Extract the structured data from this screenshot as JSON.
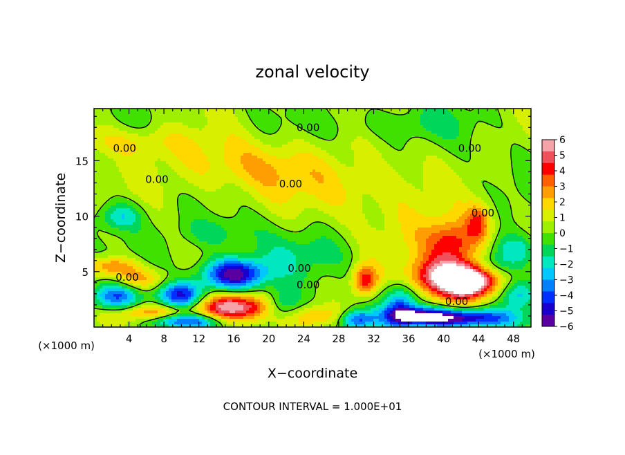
{
  "chart_data": {
    "type": "heatmap",
    "title": "zonal velocity",
    "xlabel": "X−coordinate",
    "ylabel": "Z−coordinate",
    "x_unit_label": "(×1000 m)",
    "y_unit_label": "(×1000 m)",
    "xlim": [
      0,
      50
    ],
    "ylim": [
      0,
      19.7
    ],
    "x_ticks": [
      4,
      8,
      12,
      16,
      20,
      24,
      28,
      32,
      36,
      40,
      44,
      48
    ],
    "y_ticks": [
      5,
      10,
      15
    ],
    "footer": "CONTOUR INTERVAL = 1.000E+01",
    "contour_label": "0.00",
    "colorbar": {
      "ticks": [
        6,
        5,
        4,
        3,
        2,
        1,
        0,
        -1,
        -2,
        -3,
        -4,
        -5,
        -6
      ],
      "colors": [
        "#f4a3a8",
        "#f0505a",
        "#ff0000",
        "#ff6000",
        "#ff9e00",
        "#ffd800",
        "#d8f000",
        "#9ef000",
        "#40e000",
        "#00d65a",
        "#00e8c0",
        "#00c8ff",
        "#0080ff",
        "#0030ff",
        "#1a00cc",
        "#5a00a0"
      ]
    },
    "field": {
      "background_value": 0.2,
      "features": [
        {
          "x": 16,
          "z": 1.8,
          "sx": 3.2,
          "sz": 0.9,
          "v": 6
        },
        {
          "x": 7,
          "z": 1.2,
          "sx": 3.5,
          "sz": 0.6,
          "v": 3
        },
        {
          "x": 16,
          "z": 4.8,
          "sx": 2.6,
          "sz": 1.0,
          "v": -6
        },
        {
          "x": 10,
          "z": 2.8,
          "sx": 2.0,
          "sz": 0.9,
          "v": -5
        },
        {
          "x": 2.5,
          "z": 2.8,
          "sx": 2.0,
          "sz": 0.9,
          "v": -4
        },
        {
          "x": 5,
          "z": 4.3,
          "sx": 2.4,
          "sz": 0.7,
          "v": 2.5
        },
        {
          "x": 2,
          "z": 5.5,
          "sx": 2.0,
          "sz": 0.6,
          "v": 3
        },
        {
          "x": 10,
          "z": 0.6,
          "sx": 3.0,
          "sz": 0.5,
          "v": -5
        },
        {
          "x": 21.5,
          "z": 2.0,
          "sx": 1.6,
          "sz": 1.0,
          "v": -3
        },
        {
          "x": 26,
          "z": 1.0,
          "sx": 2.5,
          "sz": 0.7,
          "v": 2
        },
        {
          "x": 31,
          "z": 4.2,
          "sx": 1.0,
          "sz": 1.0,
          "v": 4
        },
        {
          "x": 30,
          "z": 0.7,
          "sx": 1.4,
          "sz": 0.6,
          "v": -4
        },
        {
          "x": 35,
          "z": 2.0,
          "sx": 1.4,
          "sz": 1.4,
          "v": -4
        },
        {
          "x": 40.5,
          "z": 4.5,
          "sx": 3.2,
          "sz": 1.2,
          "v": 6
        },
        {
          "x": 43,
          "z": 4.0,
          "sx": 2.0,
          "sz": 1.0,
          "v": 5.5
        },
        {
          "x": 41,
          "z": 7.5,
          "sx": 2.0,
          "sz": 1.4,
          "v": 3.5
        },
        {
          "x": 44,
          "z": 9.5,
          "sx": 1.0,
          "sz": 1.2,
          "v": 3
        },
        {
          "x": 42,
          "z": 0.8,
          "sx": 4.0,
          "sz": 0.6,
          "v": -6
        },
        {
          "x": 37,
          "z": 1.0,
          "sx": 2.5,
          "sz": 0.6,
          "v": -4
        },
        {
          "x": 48.5,
          "z": 3.0,
          "sx": 1.4,
          "sz": 1.0,
          "v": -3
        },
        {
          "x": 46,
          "z": 5.5,
          "sx": 2.0,
          "sz": 0.8,
          "v": -2
        },
        {
          "x": 17,
          "z": 14.5,
          "sx": 6.0,
          "sz": 1.8,
          "v": 2
        },
        {
          "x": 30,
          "z": 12.5,
          "sx": 5.0,
          "sz": 2.0,
          "v": 1.5
        },
        {
          "x": 4,
          "z": 16.7,
          "sx": 5.0,
          "sz": 1.0,
          "v": 1.5
        },
        {
          "x": 38,
          "z": 8.0,
          "sx": 4.0,
          "sz": 2.0,
          "v": 1.5
        },
        {
          "x": 3,
          "z": 10.0,
          "sx": 1.6,
          "sz": 0.9,
          "v": -2.5
        },
        {
          "x": 14,
          "z": 8.5,
          "sx": 3.0,
          "sz": 1.0,
          "v": -1.5
        },
        {
          "x": 48,
          "z": 7.0,
          "sx": 2.0,
          "sz": 1.0,
          "v": -2.5
        },
        {
          "x": 35,
          "z": 18.3,
          "sx": 6.0,
          "sz": 1.0,
          "v": -1
        },
        {
          "x": 25,
          "z": 6.5,
          "sx": 5.0,
          "sz": 1.5,
          "v": -1.2
        }
      ]
    },
    "contour_labels": [
      {
        "x": 24.5,
        "z": 18.0
      },
      {
        "x": 3.5,
        "z": 16.1
      },
      {
        "x": 43.0,
        "z": 16.1
      },
      {
        "x": 7.2,
        "z": 13.3
      },
      {
        "x": 22.5,
        "z": 12.9
      },
      {
        "x": 44.5,
        "z": 10.3
      },
      {
        "x": 3.8,
        "z": 4.5
      },
      {
        "x": 23.5,
        "z": 5.3
      },
      {
        "x": 24.5,
        "z": 3.8
      },
      {
        "x": 41.5,
        "z": 2.3
      }
    ]
  }
}
